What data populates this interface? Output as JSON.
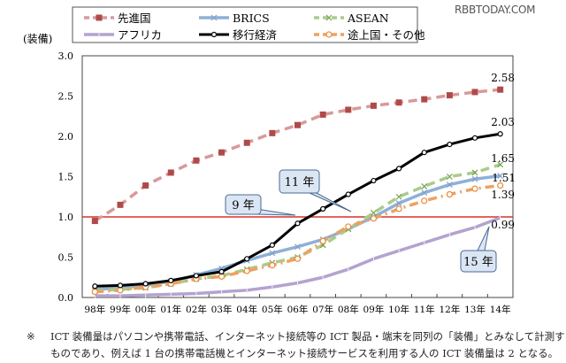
{
  "watermark": "RBBTODAY.COM",
  "chart_data": {
    "type": "line",
    "title": "",
    "ylabel": "(装備)",
    "xlabel": "",
    "ylim": [
      0,
      3.0
    ],
    "yticks": [
      "0.0",
      "0.5",
      "1.0",
      "1.5",
      "2.0",
      "2.5",
      "3.0"
    ],
    "categories": [
      "98年",
      "99年",
      "00年",
      "01年",
      "02年",
      "03年",
      "04年",
      "05年",
      "06年",
      "07年",
      "08年",
      "09年",
      "10年",
      "11年",
      "12年",
      "13年",
      "14年"
    ],
    "grid": false,
    "legend_position": "top",
    "reference_line": {
      "value": 1.0,
      "color": "#d9302c"
    },
    "series": [
      {
        "name": "先進国",
        "color": "#b04a4a",
        "line_color": "#d79a9a",
        "style": "dashed",
        "marker": "square",
        "values": [
          0.95,
          1.15,
          1.39,
          1.55,
          1.7,
          1.8,
          1.92,
          2.04,
          2.14,
          2.27,
          2.33,
          2.38,
          2.42,
          2.46,
          2.51,
          2.55,
          2.58
        ],
        "end_label": "2.58"
      },
      {
        "name": "BRICS",
        "color": "#7fa3cf",
        "line_color": "#8fb0d6",
        "style": "solid",
        "marker": "x",
        "values": [
          0.1,
          0.12,
          0.15,
          0.2,
          0.28,
          0.36,
          0.46,
          0.55,
          0.63,
          0.72,
          0.85,
          1.0,
          1.17,
          1.3,
          1.4,
          1.47,
          1.51
        ],
        "end_label": "1.51"
      },
      {
        "name": "ASEAN",
        "color": "#77a04a",
        "line_color": "#a9cc8a",
        "style": "dashed",
        "marker": "x",
        "values": [
          0.08,
          0.1,
          0.12,
          0.17,
          0.23,
          0.27,
          0.35,
          0.43,
          0.5,
          0.65,
          0.85,
          1.05,
          1.25,
          1.38,
          1.5,
          1.55,
          1.65
        ],
        "end_label": "1.65"
      },
      {
        "name": "アフリカ",
        "color": "#a48fc4",
        "line_color": "#b4a2d0",
        "style": "solid",
        "marker": "plus",
        "values": [
          0.02,
          0.02,
          0.03,
          0.04,
          0.05,
          0.07,
          0.09,
          0.13,
          0.18,
          0.25,
          0.35,
          0.48,
          0.58,
          0.68,
          0.78,
          0.87,
          0.99
        ],
        "end_label": "0.99"
      },
      {
        "name": "移行経済",
        "color": "#000000",
        "line_color": "#000000",
        "style": "solid",
        "marker": "circle",
        "values": [
          0.14,
          0.15,
          0.17,
          0.21,
          0.27,
          0.32,
          0.48,
          0.65,
          0.92,
          1.1,
          1.28,
          1.45,
          1.6,
          1.8,
          1.9,
          1.98,
          2.03
        ],
        "end_label": "2.03"
      },
      {
        "name": "途上国・その他",
        "color": "#e88a3c",
        "line_color": "#f0a060",
        "style": "dashdot",
        "marker": "open",
        "values": [
          0.07,
          0.09,
          0.13,
          0.17,
          0.23,
          0.26,
          0.33,
          0.4,
          0.48,
          0.7,
          0.88,
          0.98,
          1.1,
          1.2,
          1.28,
          1.35,
          1.39
        ],
        "end_label": "1.39"
      }
    ],
    "annotations": [
      {
        "text": "9 年",
        "points_to": "06年"
      },
      {
        "text": "11 年",
        "points_to": "08年"
      },
      {
        "text": "15 年",
        "points_to": "14年"
      }
    ]
  },
  "footnote": {
    "mark": "※",
    "line1": "ICT 装備量はパソコンや携帯電話、インターネット接続等の ICT 製品・端末を同列の「装備」とみなして計測する",
    "line2": "ものであり、例えば 1 台の携帯電話機とインターネット接続サービスを利用する人の ICT 装備量は 2 となる。"
  }
}
